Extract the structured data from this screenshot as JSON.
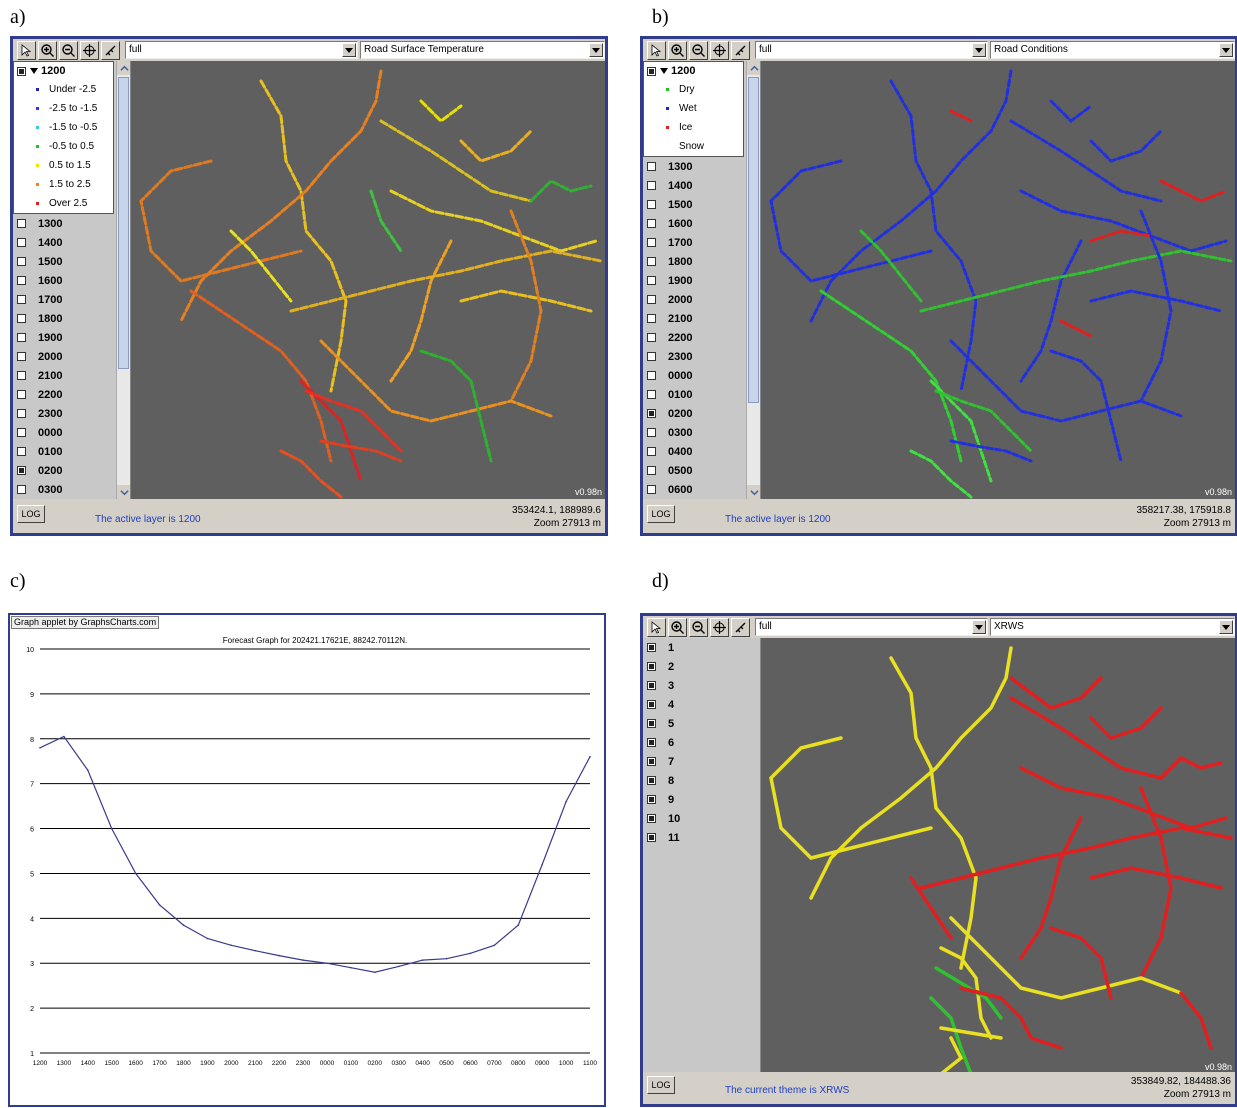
{
  "labels": {
    "a": "a)",
    "b": "b)",
    "c": "c)",
    "d": "d)"
  },
  "colors": {
    "frame": "#2f3d8c",
    "map_bg": "#5f5f5f",
    "status_text": "#1f3fbf"
  },
  "icons": [
    "select-arrow-icon",
    "zoom-in-icon",
    "zoom-out-icon",
    "pan-icon",
    "measure-icon"
  ],
  "panel_a": {
    "scale_combo": "full",
    "theme_combo": "Road Surface Temperature",
    "active_layer": "1200",
    "legend": [
      {
        "label": "Under -2.5",
        "color": "#2020c0"
      },
      {
        "label": "-2.5 to -1.5",
        "color": "#3030ff"
      },
      {
        "label": "-1.5 to -0.5",
        "color": "#40c8e0"
      },
      {
        "label": "-0.5 to 0.5",
        "color": "#20c020"
      },
      {
        "label": "0.5 to 1.5",
        "color": "#e8e800"
      },
      {
        "label": "1.5 to 2.5",
        "color": "#f08020"
      },
      {
        "label": "Over 2.5",
        "color": "#e02020"
      }
    ],
    "layers": [
      {
        "label": "1300",
        "checked": false
      },
      {
        "label": "1400",
        "checked": false
      },
      {
        "label": "1500",
        "checked": false
      },
      {
        "label": "1600",
        "checked": false
      },
      {
        "label": "1700",
        "checked": false
      },
      {
        "label": "1800",
        "checked": false
      },
      {
        "label": "1900",
        "checked": false
      },
      {
        "label": "2000",
        "checked": false
      },
      {
        "label": "2100",
        "checked": false
      },
      {
        "label": "2200",
        "checked": false
      },
      {
        "label": "2300",
        "checked": false
      },
      {
        "label": "0000",
        "checked": false
      },
      {
        "label": "0100",
        "checked": false
      },
      {
        "label": "0200",
        "checked": true
      },
      {
        "label": "0300",
        "checked": false
      }
    ],
    "scale_readout": "v0.98n",
    "log_label": "LOG",
    "status": "The active layer is 1200",
    "coords": "353424.1, 188989.6",
    "zoom": "Zoom  27913 m"
  },
  "panel_b": {
    "scale_combo": "full",
    "theme_combo": "Road Conditions",
    "active_layer": "1200",
    "legend": [
      {
        "label": "Dry",
        "color": "#20c020"
      },
      {
        "label": "Wet",
        "color": "#2020d0"
      },
      {
        "label": "Ice",
        "color": "#e02020"
      },
      {
        "label": "Snow",
        "color": "#ffffff"
      }
    ],
    "layers": [
      {
        "label": "1300",
        "checked": false
      },
      {
        "label": "1400",
        "checked": false
      },
      {
        "label": "1500",
        "checked": false
      },
      {
        "label": "1600",
        "checked": false
      },
      {
        "label": "1700",
        "checked": false
      },
      {
        "label": "1800",
        "checked": false
      },
      {
        "label": "1900",
        "checked": false
      },
      {
        "label": "2000",
        "checked": false
      },
      {
        "label": "2100",
        "checked": false
      },
      {
        "label": "2200",
        "checked": false
      },
      {
        "label": "2300",
        "checked": false
      },
      {
        "label": "0000",
        "checked": false
      },
      {
        "label": "0100",
        "checked": false
      },
      {
        "label": "0200",
        "checked": true
      },
      {
        "label": "0300",
        "checked": false
      },
      {
        "label": "0400",
        "checked": false
      },
      {
        "label": "0500",
        "checked": false
      },
      {
        "label": "0600",
        "checked": false
      }
    ],
    "scale_readout": "v0.98n",
    "log_label": "LOG",
    "status": "The active layer is 1200",
    "coords": "358217.38, 175918.8",
    "zoom": "Zoom  27913 m"
  },
  "panel_c": {
    "tag": "Graph applet by GraphsCharts.com",
    "chart_data": {
      "type": "line",
      "title": "Forecast Graph for 202421.17621E, 88242.70112N.",
      "x": [
        "1200",
        "1300",
        "1400",
        "1500",
        "1600",
        "1700",
        "1800",
        "1900",
        "2000",
        "2100",
        "2200",
        "2300",
        "0000",
        "0100",
        "0200",
        "0300",
        "0400",
        "0500",
        "0600",
        "0700",
        "0800",
        "0900",
        "1000",
        "1100"
      ],
      "y": [
        7.8,
        8.05,
        7.3,
        6.0,
        5.0,
        4.3,
        3.85,
        3.55,
        3.4,
        3.28,
        3.17,
        3.07,
        3.0,
        2.9,
        2.8,
        2.93,
        3.07,
        3.1,
        3.22,
        3.4,
        3.85,
        5.2,
        6.6,
        7.6
      ],
      "yticks": [
        "1",
        "2",
        "3",
        "4",
        "5",
        "6",
        "7",
        "8",
        "9",
        "10"
      ],
      "ylim": [
        1,
        10
      ],
      "grid": true
    }
  },
  "panel_d": {
    "scale_combo": "full",
    "theme_combo": "XRWS",
    "layers": [
      {
        "label": "1",
        "checked": true
      },
      {
        "label": "2",
        "checked": true
      },
      {
        "label": "3",
        "checked": true
      },
      {
        "label": "4",
        "checked": true
      },
      {
        "label": "5",
        "checked": true
      },
      {
        "label": "6",
        "checked": true
      },
      {
        "label": "7",
        "checked": true
      },
      {
        "label": "8",
        "checked": true
      },
      {
        "label": "9",
        "checked": true
      },
      {
        "label": "10",
        "checked": true
      },
      {
        "label": "11",
        "checked": true
      }
    ],
    "scale_readout": "v0.98n",
    "log_label": "LOG",
    "status": "The current theme is XRWS",
    "coords": "353849.82, 184488.36",
    "zoom": "Zoom  27913 m"
  }
}
